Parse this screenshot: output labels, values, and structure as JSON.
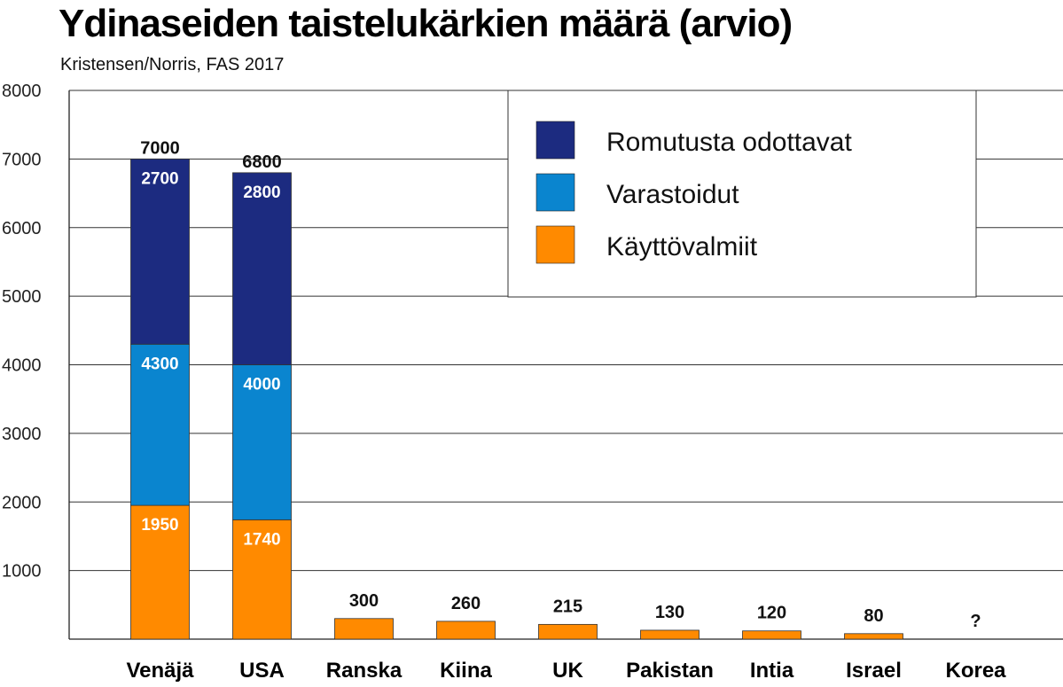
{
  "title": "Ydinaseiden taistelukärkien määrä (arvio)",
  "subtitle": "Kristensen/Norris, FAS 2017",
  "chart_data": {
    "type": "bar",
    "stacked": true,
    "categories": [
      "Venäjä",
      "USA",
      "Ranska",
      "Kiina",
      "UK",
      "Pakistan",
      "Intia",
      "Israel",
      "Korea"
    ],
    "series": [
      {
        "name": "Käyttövalmiit",
        "color": "#ff8a00",
        "values": [
          1950,
          1740,
          300,
          260,
          215,
          130,
          120,
          80,
          null
        ]
      },
      {
        "name": "Varastoidut",
        "color": "#0a85cf",
        "values": [
          2350,
          2260,
          null,
          null,
          null,
          null,
          null,
          null,
          null
        ]
      },
      {
        "name": "Romutusta odottavat",
        "color": "#1c2b80",
        "values": [
          2700,
          2800,
          null,
          null,
          null,
          null,
          null,
          null,
          null
        ]
      }
    ],
    "segment_labels": [
      [
        "1950",
        "4300",
        "2700"
      ],
      [
        "1740",
        "4000",
        "2800"
      ],
      [],
      [],
      [],
      [],
      [],
      [],
      []
    ],
    "totals": [
      "7000",
      "6800",
      "300",
      "260",
      "215",
      "130",
      "120",
      "80",
      "?"
    ],
    "legend": {
      "position": "top-right",
      "items": [
        "Romutusta odottavat",
        "Varastoidut",
        "Käyttövalmiit"
      ]
    },
    "ylim": [
      0,
      8000
    ],
    "yticks": [
      "1000",
      "2000",
      "3000",
      "4000",
      "5000",
      "6000",
      "7000",
      "8000"
    ],
    "grid": true,
    "xlabel": "",
    "ylabel": ""
  }
}
